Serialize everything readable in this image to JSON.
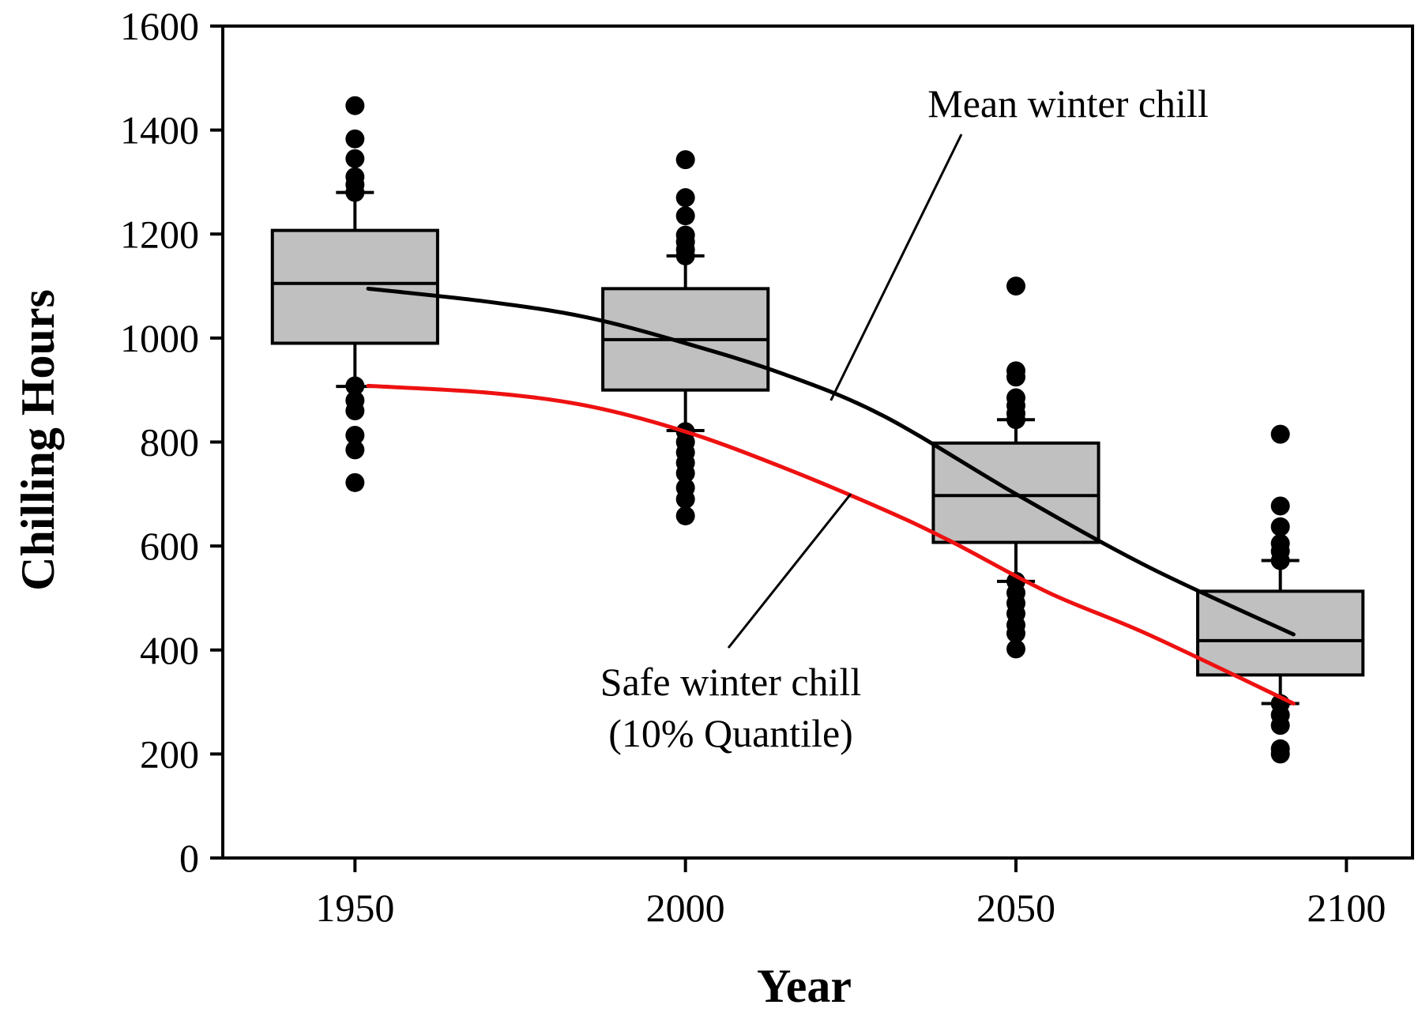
{
  "chart_data": {
    "type": "box",
    "xlabel": "Year",
    "ylabel": "Chilling Hours",
    "xlim": [
      1930,
      2110
    ],
    "ylim": [
      0,
      1600
    ],
    "x_ticks": [
      1950,
      2000,
      2050,
      2100
    ],
    "y_ticks": [
      0,
      200,
      400,
      600,
      800,
      1000,
      1200,
      1400,
      1600
    ],
    "grid": false,
    "box_width_years": 25,
    "boxes": [
      {
        "x": 1950,
        "q1": 990,
        "median": 1105,
        "q3": 1207,
        "whisker_low": 907,
        "whisker_high": 1280,
        "outliers": [
          1447,
          1383,
          1345,
          1310,
          1295,
          1280,
          908,
          880,
          860,
          813,
          785,
          722
        ]
      },
      {
        "x": 2000,
        "q1": 900,
        "median": 997,
        "q3": 1095,
        "whisker_low": 822,
        "whisker_high": 1158,
        "outliers": [
          1343,
          1270,
          1235,
          1198,
          1185,
          1170,
          1158,
          820,
          800,
          780,
          760,
          740,
          712,
          690,
          658
        ]
      },
      {
        "x": 2050,
        "q1": 607,
        "median": 697,
        "q3": 798,
        "whisker_low": 532,
        "whisker_high": 843,
        "outliers": [
          1100,
          937,
          925,
          885,
          870,
          855,
          843,
          532,
          510,
          490,
          470,
          448,
          432,
          402
        ]
      },
      {
        "x": 2090,
        "q1": 352,
        "median": 418,
        "q3": 513,
        "whisker_low": 297,
        "whisker_high": 572,
        "outliers": [
          815,
          677,
          637,
          605,
          590,
          572,
          297,
          275,
          255,
          210,
          200
        ]
      }
    ],
    "series": [
      {
        "color": "#000000",
        "x": [
          1952,
          1970,
          1985,
          2000,
          2015,
          2030,
          2050,
          2070,
          2092
        ],
        "y": [
          1095,
          1070,
          1040,
          990,
          930,
          850,
          700,
          560,
          430
        ]
      },
      {
        "color": "#ee1111",
        "x": [
          1952,
          1970,
          1985,
          2000,
          2015,
          2030,
          2040,
          2055,
          2070,
          2092
        ],
        "y": [
          908,
          895,
          870,
          820,
          750,
          670,
          610,
          510,
          430,
          297
        ]
      }
    ],
    "annotations": [
      {
        "text": "Mean winter chill",
        "points_to": {
          "x": 2022,
          "y": 880
        }
      },
      {
        "text": "Safe winter chill",
        "line2": "(10% Quantile)",
        "points_to": {
          "x": 2025,
          "y": 700
        }
      }
    ]
  }
}
